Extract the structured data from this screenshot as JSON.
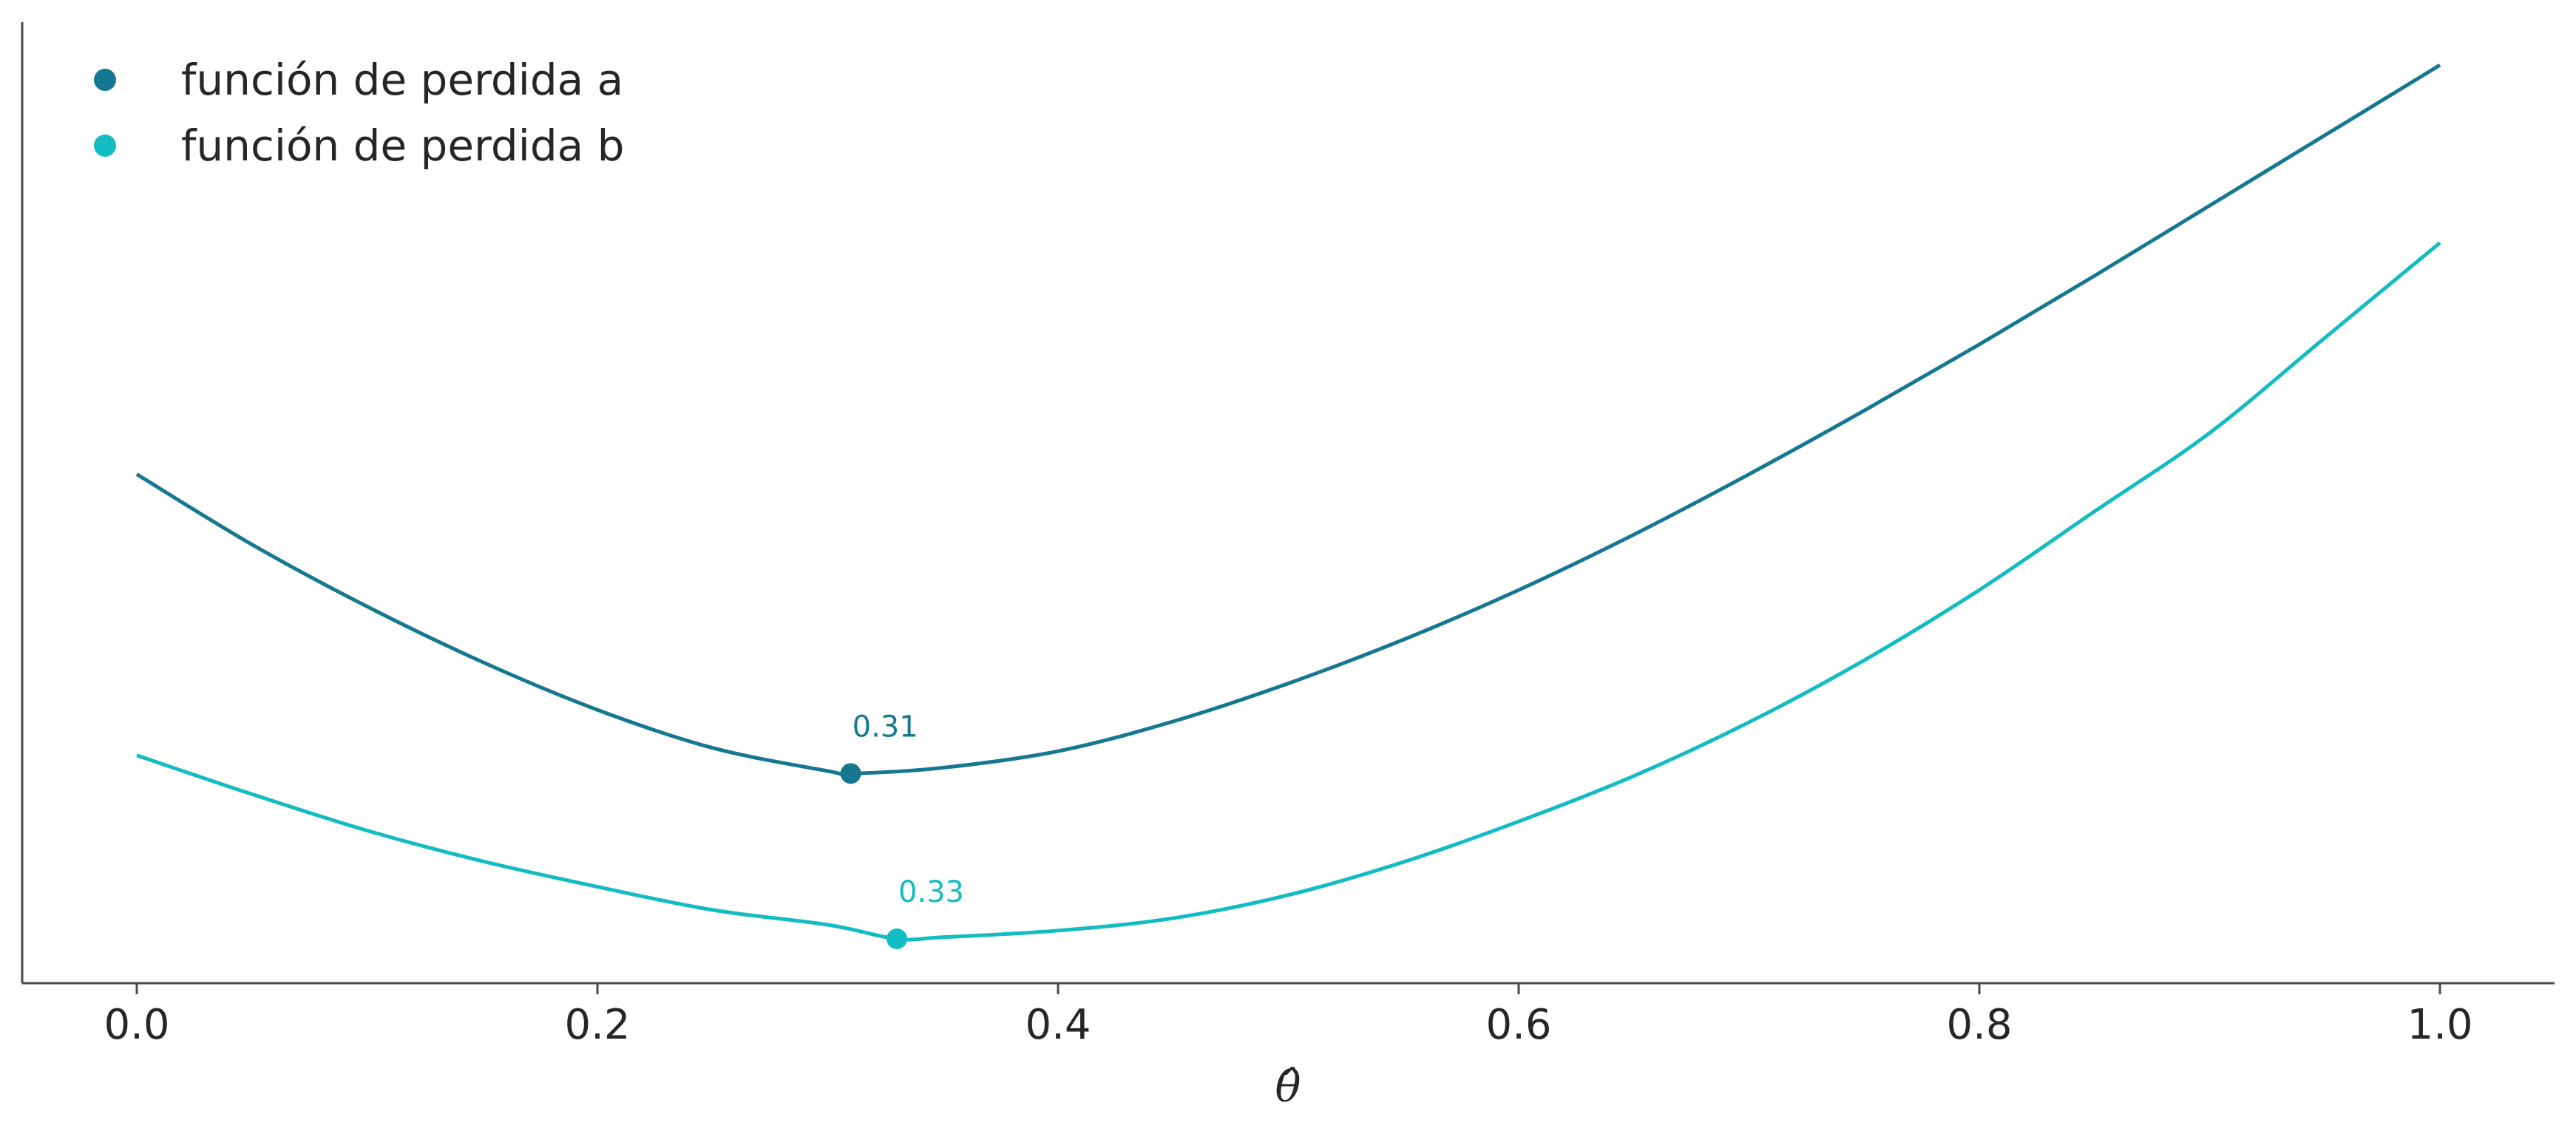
{
  "chart_data": {
    "type": "line",
    "title": "",
    "xlabel": "θ̂",
    "ylabel": "",
    "xlim": [
      -0.05,
      1.05
    ],
    "x_ticks": [
      0.0,
      0.2,
      0.4,
      0.6,
      0.8,
      1.0
    ],
    "x_tick_labels": [
      "0.0",
      "0.2",
      "0.4",
      "0.6",
      "0.8",
      "1.0"
    ],
    "y_ticks_shown": false,
    "grid": false,
    "legend_position": "top-left",
    "series": [
      {
        "name": "función de perdida a",
        "color": "#157890",
        "x": [
          0.0,
          0.05,
          0.1,
          0.15,
          0.2,
          0.25,
          0.3,
          0.31,
          0.35,
          0.4,
          0.45,
          0.5,
          0.55,
          0.6,
          0.65,
          0.7,
          0.75,
          0.8,
          0.85,
          0.9,
          0.95,
          1.0
        ],
        "y": [
          0.705,
          0.62,
          0.545,
          0.478,
          0.42,
          0.374,
          0.346,
          0.343,
          0.35,
          0.37,
          0.406,
          0.452,
          0.505,
          0.565,
          0.632,
          0.705,
          0.782,
          0.862,
          0.945,
          1.03,
          1.115,
          1.2
        ],
        "minimum": {
          "x": 0.31,
          "y": 0.343,
          "label": "0.31"
        }
      },
      {
        "name": "función de perdida b",
        "color": "#12BCC2",
        "x": [
          0.0,
          0.05,
          0.1,
          0.15,
          0.2,
          0.25,
          0.3,
          0.33,
          0.35,
          0.4,
          0.45,
          0.5,
          0.55,
          0.6,
          0.65,
          0.7,
          0.75,
          0.8,
          0.85,
          0.9,
          0.95,
          1.0
        ],
        "y": [
          0.365,
          0.318,
          0.274,
          0.237,
          0.206,
          0.178,
          0.16,
          0.143,
          0.145,
          0.153,
          0.168,
          0.196,
          0.236,
          0.285,
          0.34,
          0.405,
          0.48,
          0.565,
          0.66,
          0.755,
          0.87,
          0.985
        ],
        "minimum": {
          "x": 0.33,
          "y": 0.143,
          "label": "0.33"
        }
      }
    ]
  }
}
